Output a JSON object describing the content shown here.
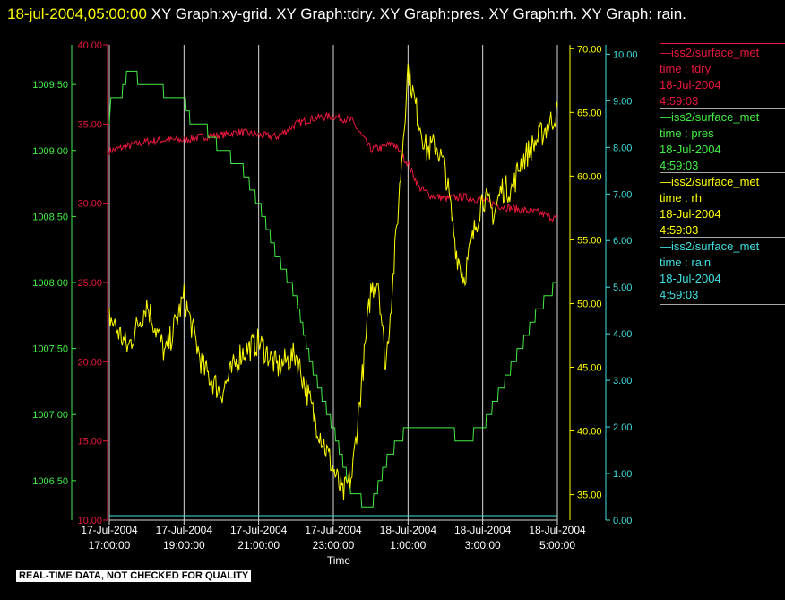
{
  "header": {
    "timestamp": "18-jul-2004,05:00:00",
    "title_rest": "  XY Graph:xy-grid.  XY Graph:tdry.  XY Graph:pres.  XY Graph:rh.  XY Graph: rain."
  },
  "legend": [
    {
      "name": "iss2/surface_met",
      "line1": "time : tdry",
      "line2": "18-Jul-2004",
      "line3": "4:59:03",
      "color": "#e8183c"
    },
    {
      "name": "iss2/surface_met",
      "line1": "time : pres",
      "line2": "18-Jul-2004",
      "line3": "4:59:03",
      "color": "#44ee44"
    },
    {
      "name": "iss2/surface_met",
      "line1": "time : rh",
      "line2": "18-Jul-2004",
      "line3": "4:59:03",
      "color": "#ffff00"
    },
    {
      "name": "iss2/surface_met",
      "line1": "time : rain",
      "line2": "18-Jul-2004",
      "line3": "4:59:03",
      "color": "#40e0e0"
    }
  ],
  "disclaimer": "REAL-TIME DATA, NOT CHECKED FOR QUALITY",
  "chart_data": {
    "type": "line",
    "xlabel": "Time",
    "x_ticks": [
      {
        "date": "17-Jul-2004",
        "time": "17:00:00"
      },
      {
        "date": "17-Jul-2004",
        "time": "19:00:00"
      },
      {
        "date": "17-Jul-2004",
        "time": "21:00:00"
      },
      {
        "date": "17-Jul-2004",
        "time": "23:00:00"
      },
      {
        "date": "18-Jul-2004",
        "time": "1:00:00"
      },
      {
        "date": "18-Jul-2004",
        "time": "3:00:00"
      },
      {
        "date": "18-Jul-2004",
        "time": "5:00:00"
      }
    ],
    "grid": "vertical",
    "axes": {
      "tdry": {
        "ylim": [
          10,
          40
        ],
        "ticks": [
          "10.00",
          "15.00",
          "20.00",
          "25.00",
          "30.00",
          "35.00",
          "40.00"
        ],
        "color": "#e8183c"
      },
      "pres": {
        "ylim": [
          1006.2,
          1009.8
        ],
        "ticks": [
          "1006.50",
          "1007.00",
          "1007.50",
          "1008.00",
          "1008.50",
          "1009.00",
          "1009.50"
        ],
        "color": "#44ee44"
      },
      "rh": {
        "ylim": [
          33,
          70.3
        ],
        "ticks": [
          "35.00",
          "40.00",
          "45.00",
          "50.00",
          "55.00",
          "60.00",
          "65.00",
          "70.00"
        ],
        "color": "#ffff00"
      },
      "rain": {
        "ylim": [
          0,
          10.2
        ],
        "ticks": [
          "0.00",
          "1.00",
          "2.00",
          "3.00",
          "4.00",
          "5.00",
          "6.00",
          "7.00",
          "8.00",
          "9.00",
          "10.00"
        ],
        "color": "#40e0e0"
      }
    },
    "series": [
      {
        "name": "tdry",
        "axis": "tdry",
        "color": "#e8183c",
        "noise": 0.25,
        "x": [
          17.0,
          17.5,
          18.0,
          18.5,
          19.0,
          19.5,
          20.0,
          20.5,
          21.0,
          21.5,
          22.0,
          22.5,
          23.0,
          23.5,
          24.0,
          24.3,
          24.6,
          25.0,
          25.3,
          25.6,
          26.0,
          26.5,
          27.0,
          27.5,
          28.0,
          28.5,
          29.0
        ],
        "y": [
          33.3,
          33.6,
          33.9,
          34.0,
          34.0,
          34.2,
          34.3,
          34.5,
          34.3,
          34.2,
          35.0,
          35.4,
          35.5,
          35.2,
          33.4,
          33.5,
          33.8,
          32.5,
          31.0,
          30.5,
          30.3,
          30.4,
          30.2,
          29.8,
          29.6,
          29.4,
          29.0
        ]
      },
      {
        "name": "pres",
        "axis": "pres",
        "color": "#44ee44",
        "noise": 0,
        "x": [
          17.0,
          17.05,
          17.3,
          17.5,
          18.0,
          18.3,
          18.6,
          19.0,
          19.2,
          19.5,
          20.0,
          20.5,
          21.0,
          21.5,
          22.0,
          22.3,
          22.5,
          23.0,
          23.5,
          24.0,
          24.5,
          25.0,
          25.5,
          26.0,
          26.5,
          27.0,
          27.5,
          28.0,
          28.5,
          29.0
        ],
        "y": [
          1009.2,
          1009.4,
          1009.4,
          1009.6,
          1009.5,
          1009.5,
          1009.4,
          1009.4,
          1009.2,
          1009.2,
          1009.0,
          1008.9,
          1008.6,
          1008.2,
          1007.9,
          1007.5,
          1007.3,
          1006.9,
          1006.4,
          1006.3,
          1006.7,
          1006.9,
          1006.9,
          1006.9,
          1006.8,
          1006.9,
          1007.2,
          1007.5,
          1007.8,
          1008.0
        ]
      },
      {
        "name": "rh",
        "axis": "rh",
        "color": "#ffff00",
        "noise": 1.1,
        "x": [
          17.0,
          17.5,
          18.0,
          18.5,
          19.0,
          19.5,
          20.0,
          20.5,
          21.0,
          21.5,
          22.0,
          22.5,
          23.0,
          23.25,
          23.5,
          23.8,
          24.0,
          24.2,
          24.4,
          24.6,
          24.75,
          25.0,
          25.2,
          25.5,
          25.75,
          26.0,
          26.3,
          26.5,
          26.8,
          27.0,
          27.3,
          27.5,
          27.8,
          28.0,
          28.5,
          29.0
        ],
        "y": [
          49.0,
          46.5,
          50.0,
          46.0,
          50.5,
          45.0,
          43.0,
          46.0,
          47.0,
          45.0,
          46.0,
          41.0,
          37.0,
          35.0,
          36.5,
          45.0,
          51.0,
          52.0,
          45.0,
          52.0,
          58.0,
          68.5,
          65.5,
          62.0,
          62.5,
          60.5,
          54.0,
          52.0,
          56.0,
          58.5,
          57.0,
          59.0,
          59.0,
          61.0,
          63.0,
          65.0
        ]
      },
      {
        "name": "rain",
        "axis": "rain",
        "color": "#40e0e0",
        "noise": 0,
        "x": [
          17.0,
          29.0
        ],
        "y": [
          0.0,
          0.0
        ]
      }
    ]
  }
}
